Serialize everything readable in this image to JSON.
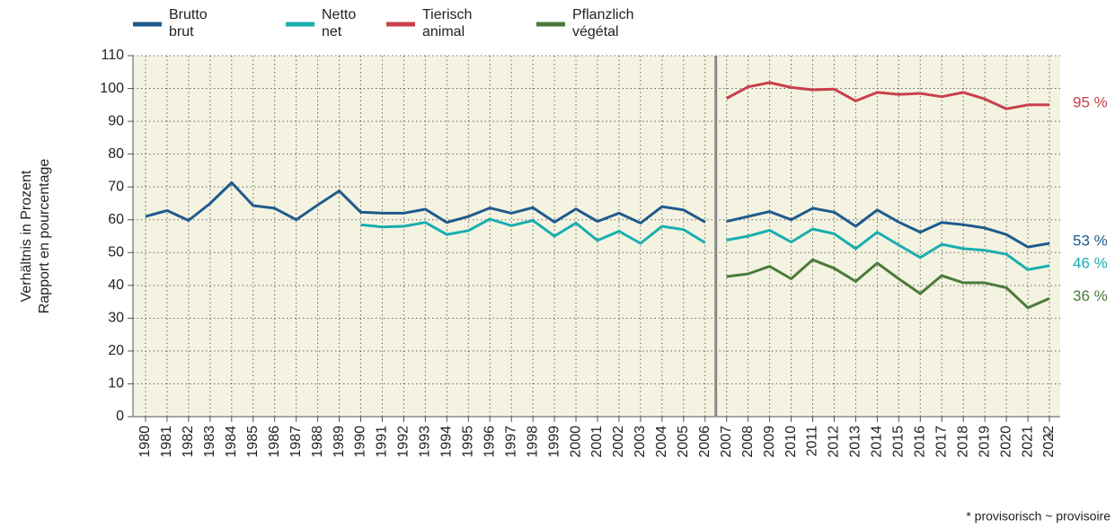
{
  "chart_data": {
    "type": "line",
    "ylabel": [
      "Verhältnis in Prozent",
      "Rapport en pourcentage"
    ],
    "categories": [
      "1980",
      "1981",
      "1982",
      "1983",
      "1984",
      "1985",
      "1986",
      "1987",
      "1988",
      "1989",
      "1990",
      "1991",
      "1992",
      "1993",
      "1994",
      "1995",
      "1996",
      "1997",
      "1998",
      "1999",
      "2000",
      "2001",
      "2002",
      "2003",
      "2004",
      "2005",
      "2006",
      "2007",
      "2008",
      "2009",
      "2010",
      "2011",
      "2012",
      "2013",
      "2014",
      "2015",
      "2016",
      "2017",
      "2018",
      "2019",
      "2020",
      "2021",
      "2022"
    ],
    "divider_after": "2006",
    "provisional_mark": "*",
    "footnote": "* provisorisch  ~  provisoire",
    "series": [
      {
        "name": [
          "Brutto",
          "brut"
        ],
        "color": "#1f5a8c",
        "end_label": "53 %",
        "values": [
          61,
          62.8,
          59.8,
          65,
          71.3,
          64.3,
          63.5,
          60,
          64.5,
          68.8,
          62.3,
          62,
          62,
          63.2,
          59.2,
          61,
          63.6,
          62,
          63.7,
          59.3,
          63.3,
          59.5,
          62,
          59,
          64,
          63,
          59.3,
          59.5,
          61,
          62.5,
          60,
          63.5,
          62.3,
          58,
          63,
          59.3,
          56.2,
          59.2,
          58.5,
          57.5,
          55.5,
          51.7,
          52.8
        ]
      },
      {
        "name": [
          "Netto",
          "net"
        ],
        "color": "#1aaeb0",
        "end_label": "46 %",
        "values": [
          null,
          null,
          null,
          null,
          null,
          null,
          null,
          null,
          null,
          null,
          58.5,
          57.8,
          58,
          59.2,
          55.5,
          56.7,
          60.2,
          58.2,
          59.8,
          55,
          59,
          53.7,
          56.5,
          52.8,
          58,
          57,
          53,
          53.8,
          55,
          56.8,
          53.2,
          57.2,
          55.7,
          51.2,
          56.2,
          52.3,
          48.5,
          52.5,
          51.2,
          50.7,
          49.5,
          44.8,
          46
        ]
      },
      {
        "name": [
          "Tierisch",
          "animal"
        ],
        "color": "#c8404a",
        "end_label": "95 %",
        "values": [
          null,
          null,
          null,
          null,
          null,
          null,
          null,
          null,
          null,
          null,
          null,
          null,
          null,
          null,
          null,
          null,
          null,
          null,
          null,
          null,
          null,
          null,
          null,
          null,
          null,
          null,
          null,
          97,
          100.5,
          101.8,
          100.3,
          99.6,
          99.8,
          96.2,
          98.8,
          98.2,
          98.5,
          97.5,
          98.8,
          96.8,
          93.8,
          95,
          95
        ]
      },
      {
        "name": [
          "Pflanzlich",
          "végétal"
        ],
        "color": "#4a7a3a",
        "end_label": "36 %",
        "values": [
          null,
          null,
          null,
          null,
          null,
          null,
          null,
          null,
          null,
          null,
          null,
          null,
          null,
          null,
          null,
          null,
          null,
          null,
          null,
          null,
          null,
          null,
          null,
          null,
          null,
          null,
          null,
          42.7,
          43.5,
          45.8,
          42,
          47.8,
          45.2,
          41.2,
          46.8,
          42,
          37.5,
          43,
          40.8,
          40.8,
          39.3,
          33.2,
          36
        ]
      }
    ],
    "ylim": [
      0,
      110
    ],
    "yticks": [
      0,
      10,
      20,
      30,
      40,
      50,
      60,
      70,
      80,
      90,
      100,
      110
    ],
    "grid": true
  }
}
